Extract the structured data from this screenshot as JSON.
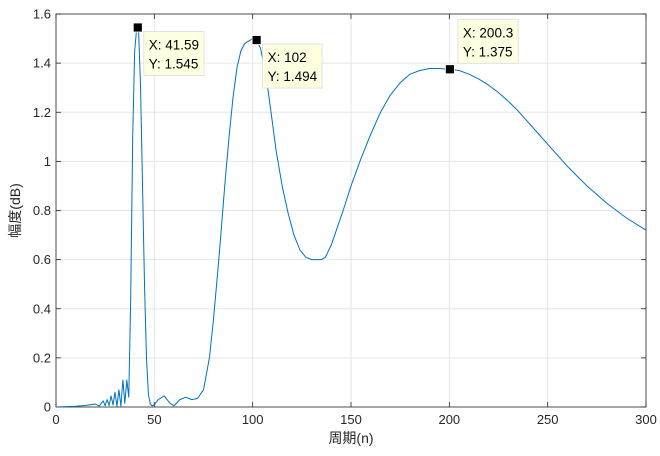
{
  "chart_data": {
    "type": "line",
    "xlabel": "周期(n)",
    "ylabel": "幅度(dB)",
    "xlim": [
      0,
      300
    ],
    "ylim": [
      0,
      1.6
    ],
    "xticks": [
      "0",
      "50",
      "100",
      "150",
      "200",
      "250",
      "300"
    ],
    "yticks": [
      "0",
      "0.2",
      "0.4",
      "0.6",
      "0.8",
      "1",
      "1.2",
      "1.4",
      "1.6"
    ],
    "grid": true,
    "colors": {
      "line": "#0072BD",
      "tip_bg": "#FFFFE1",
      "grid": "#E6E6E6",
      "axis": "#262626"
    },
    "series": [
      {
        "x": [
          0,
          10,
          15,
          20,
          22,
          24,
          25,
          26,
          27,
          28,
          29,
          30,
          31,
          32,
          33,
          34,
          35,
          36,
          37,
          38,
          39,
          40,
          41,
          41.59,
          42,
          43,
          44,
          45,
          46,
          47,
          48,
          49,
          50,
          52,
          55,
          58,
          60,
          63,
          66,
          69,
          72,
          75,
          78,
          80,
          83,
          86,
          88,
          90,
          92,
          94,
          96,
          98,
          100,
          102,
          104,
          106,
          108,
          110,
          112,
          115,
          118,
          121,
          124,
          127,
          130,
          133,
          135,
          137,
          140,
          143,
          146,
          150,
          155,
          160,
          165,
          170,
          175,
          180,
          185,
          190,
          195,
          200.3,
          205,
          210,
          215,
          220,
          225,
          230,
          235,
          240,
          245,
          250,
          255,
          260,
          265,
          270,
          275,
          280,
          285,
          290,
          295,
          300
        ],
        "y": [
          0,
          0.003,
          0.006,
          0.012,
          0.004,
          0.025,
          0.005,
          0.03,
          0.006,
          0.045,
          0.008,
          0.06,
          0.003,
          0.07,
          0.004,
          0.11,
          0.015,
          0.11,
          0.04,
          0.45,
          1.1,
          1.45,
          1.54,
          1.545,
          1.53,
          1.3,
          0.9,
          0.5,
          0.2,
          0.05,
          0.01,
          0.005,
          0.01,
          0.03,
          0.045,
          0.015,
          0.005,
          0.03,
          0.04,
          0.03,
          0.035,
          0.07,
          0.2,
          0.35,
          0.62,
          0.92,
          1.1,
          1.26,
          1.38,
          1.45,
          1.48,
          1.49,
          1.5,
          1.494,
          1.46,
          1.38,
          1.28,
          1.16,
          1.04,
          0.9,
          0.79,
          0.7,
          0.64,
          0.61,
          0.6,
          0.6,
          0.6,
          0.61,
          0.66,
          0.73,
          0.8,
          0.9,
          1.01,
          1.11,
          1.2,
          1.27,
          1.32,
          1.355,
          1.37,
          1.378,
          1.378,
          1.375,
          1.37,
          1.355,
          1.335,
          1.31,
          1.28,
          1.245,
          1.205,
          1.16,
          1.115,
          1.07,
          1.025,
          0.98,
          0.94,
          0.9,
          0.865,
          0.83,
          0.8,
          0.77,
          0.745,
          0.72
        ]
      }
    ],
    "datatips": [
      {
        "x": 41.59,
        "y": 1.545,
        "x_label": "X: 41.59",
        "y_label": "Y: 1.545",
        "placement": "right"
      },
      {
        "x": 102,
        "y": 1.494,
        "x_label": "X: 102",
        "y_label": "Y: 1.494",
        "placement": "right"
      },
      {
        "x": 200.3,
        "y": 1.375,
        "x_label": "X: 200.3",
        "y_label": "Y: 1.375",
        "placement": "above"
      }
    ]
  }
}
